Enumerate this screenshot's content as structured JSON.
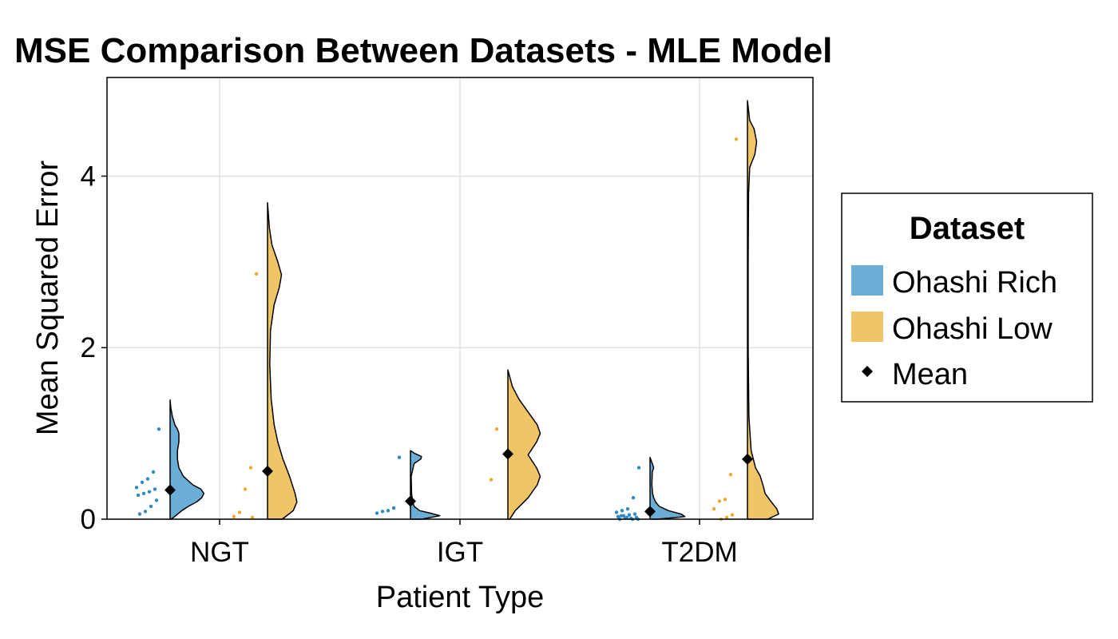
{
  "chart_data": {
    "type": "violin",
    "title": "MSE Comparison Between Datasets - MLE Model",
    "xlabel": "Patient Type",
    "ylabel": "Mean Squared Error",
    "categories": [
      "NGT",
      "IGT",
      "T2DM"
    ],
    "yticks": [
      0,
      2,
      4
    ],
    "ytick_labels": [
      "0",
      "2",
      "4"
    ],
    "ylim": [
      0,
      5.15
    ],
    "grid": true,
    "legend": {
      "title": "Dataset",
      "placement": "right",
      "entries": [
        {
          "label": "Ohashi Rich",
          "kind": "patch",
          "color": "#6aaed6"
        },
        {
          "label": "Ohashi Low",
          "kind": "patch",
          "color": "#f0c566"
        },
        {
          "label": "Mean",
          "kind": "marker",
          "color": "#000000"
        }
      ]
    },
    "colors": {
      "rich_fill": "#6aaed6",
      "low_fill": "#f0c566",
      "rich_points": "#2e8bc0",
      "low_points": "#f0a92a",
      "mean": "#000000"
    },
    "series": [
      {
        "name": "Ohashi Rich",
        "groups": [
          {
            "category": "NGT",
            "mean": 0.34,
            "range": [
              0.0,
              1.39
            ],
            "density": [
              [
                0,
                0.03
              ],
              [
                0.05,
                0.18
              ],
              [
                0.1,
                0.32
              ],
              [
                0.15,
                0.5
              ],
              [
                0.2,
                0.72
              ],
              [
                0.25,
                0.86
              ],
              [
                0.3,
                0.92
              ],
              [
                0.35,
                0.84
              ],
              [
                0.4,
                0.62
              ],
              [
                0.5,
                0.36
              ],
              [
                0.6,
                0.24
              ],
              [
                0.7,
                0.2
              ],
              [
                0.8,
                0.2
              ],
              [
                0.9,
                0.24
              ],
              [
                1.0,
                0.24
              ],
              [
                1.05,
                0.2
              ],
              [
                1.1,
                0.13
              ],
              [
                1.2,
                0.06
              ],
              [
                1.3,
                0.02
              ],
              [
                1.39,
                0.0
              ]
            ],
            "points": [
              1.05,
              0.55,
              0.47,
              0.43,
              0.37,
              0.35,
              0.32,
              0.3,
              0.28,
              0.22,
              0.15,
              0.09,
              0.06
            ]
          },
          {
            "category": "IGT",
            "mean": 0.21,
            "range": [
              0.0,
              0.8
            ],
            "density": [
              [
                0,
                0.3
              ],
              [
                0.04,
                0.8
              ],
              [
                0.07,
                0.55
              ],
              [
                0.1,
                0.25
              ],
              [
                0.15,
                0.1
              ],
              [
                0.2,
                0.06
              ],
              [
                0.3,
                0.03
              ],
              [
                0.5,
                0.02
              ],
              [
                0.65,
                0.1
              ],
              [
                0.7,
                0.28
              ],
              [
                0.73,
                0.3
              ],
              [
                0.77,
                0.1
              ],
              [
                0.8,
                0.0
              ]
            ],
            "points": [
              0.72,
              0.13,
              0.1,
              0.09,
              0.07
            ]
          },
          {
            "category": "T2DM",
            "mean": 0.09,
            "range": [
              0.0,
              0.72
            ],
            "density": [
              [
                0,
                0.2
              ],
              [
                0.03,
                0.95
              ],
              [
                0.06,
                0.85
              ],
              [
                0.1,
                0.5
              ],
              [
                0.15,
                0.25
              ],
              [
                0.2,
                0.15
              ],
              [
                0.25,
                0.1
              ],
              [
                0.3,
                0.07
              ],
              [
                0.4,
                0.05
              ],
              [
                0.55,
                0.06
              ],
              [
                0.6,
                0.1
              ],
              [
                0.65,
                0.06
              ],
              [
                0.72,
                0.0
              ]
            ],
            "points": [
              0.6,
              0.25,
              0.12,
              0.1,
              0.08,
              0.06,
              0.05,
              0.04,
              0.03,
              0.02,
              0.01,
              0.01,
              0.0,
              0.0,
              0.0,
              0.02,
              0.04
            ]
          }
        ]
      },
      {
        "name": "Ohashi Low",
        "groups": [
          {
            "category": "NGT",
            "mean": 0.56,
            "range": [
              0.0,
              3.69
            ],
            "density": [
              [
                0,
                0.4
              ],
              [
                0.1,
                0.7
              ],
              [
                0.2,
                0.8
              ],
              [
                0.3,
                0.75
              ],
              [
                0.5,
                0.6
              ],
              [
                0.7,
                0.42
              ],
              [
                0.9,
                0.28
              ],
              [
                1.1,
                0.18
              ],
              [
                1.4,
                0.1
              ],
              [
                1.8,
                0.06
              ],
              [
                2.2,
                0.08
              ],
              [
                2.5,
                0.18
              ],
              [
                2.7,
                0.32
              ],
              [
                2.85,
                0.38
              ],
              [
                3.0,
                0.28
              ],
              [
                3.2,
                0.12
              ],
              [
                3.4,
                0.05
              ],
              [
                3.69,
                0.0
              ]
            ],
            "points": [
              2.86,
              0.6,
              0.35,
              0.08,
              0.03,
              0.02
            ]
          },
          {
            "category": "IGT",
            "mean": 0.76,
            "range": [
              0.0,
              1.74
            ],
            "density": [
              [
                0,
                0.05
              ],
              [
                0.1,
                0.2
              ],
              [
                0.25,
                0.55
              ],
              [
                0.4,
                0.8
              ],
              [
                0.5,
                0.88
              ],
              [
                0.6,
                0.78
              ],
              [
                0.75,
                0.55
              ],
              [
                0.9,
                0.78
              ],
              [
                1.0,
                0.88
              ],
              [
                1.1,
                0.8
              ],
              [
                1.25,
                0.55
              ],
              [
                1.4,
                0.3
              ],
              [
                1.55,
                0.12
              ],
              [
                1.74,
                0.0
              ]
            ],
            "points": [
              1.05,
              0.46
            ]
          },
          {
            "category": "T2DM",
            "mean": 0.7,
            "range": [
              0.0,
              4.88
            ],
            "density": [
              [
                0,
                0.55
              ],
              [
                0.06,
                0.85
              ],
              [
                0.12,
                0.8
              ],
              [
                0.2,
                0.65
              ],
              [
                0.3,
                0.48
              ],
              [
                0.4,
                0.42
              ],
              [
                0.5,
                0.35
              ],
              [
                0.6,
                0.22
              ],
              [
                0.8,
                0.1
              ],
              [
                1.2,
                0.04
              ],
              [
                2.0,
                0.02
              ],
              [
                3.0,
                0.02
              ],
              [
                3.8,
                0.03
              ],
              [
                4.1,
                0.06
              ],
              [
                4.25,
                0.2
              ],
              [
                4.4,
                0.25
              ],
              [
                4.55,
                0.18
              ],
              [
                4.65,
                0.06
              ],
              [
                4.88,
                0.0
              ]
            ],
            "points": [
              4.43,
              0.52,
              0.23,
              0.21,
              0.12,
              0.05,
              0.02,
              0.0
            ]
          }
        ]
      }
    ]
  }
}
